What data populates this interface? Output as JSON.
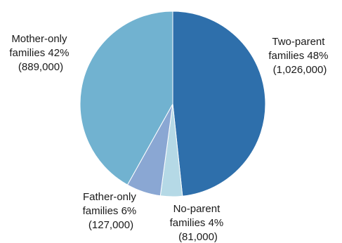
{
  "chart_data": {
    "type": "pie",
    "start_angle_deg": 0,
    "direction": "clockwise",
    "slices": [
      {
        "label_lines": [
          "Two-parent",
          "families 48%",
          "(1,026,000)"
        ],
        "value": 1026000,
        "percent": 48,
        "color": "#2e6fab"
      },
      {
        "label_lines": [
          "No-parent",
          "families 4%",
          "(81,000)"
        ],
        "value": 81000,
        "percent": 4,
        "color": "#b5d9e6"
      },
      {
        "label_lines": [
          "Father-only",
          "families 6%",
          "(127,000)"
        ],
        "value": 127000,
        "percent": 6,
        "color": "#8aa7d3"
      },
      {
        "label_lines": [
          "Mother-only",
          "families 42%",
          "(889,000)"
        ],
        "value": 889000,
        "percent": 42,
        "color": "#71b2d0"
      }
    ],
    "edge_color": "#ffffff"
  }
}
